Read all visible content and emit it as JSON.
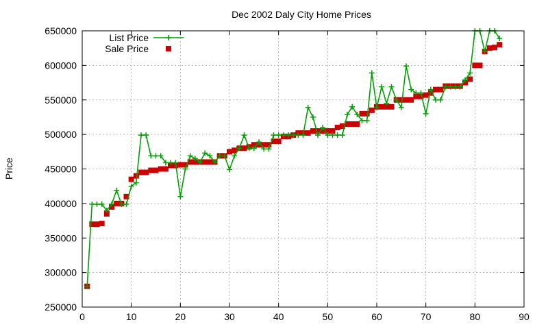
{
  "chart_data": {
    "type": "line",
    "title": "Dec 2002 Daly City Home Prices",
    "xlabel": "",
    "ylabel": "Price",
    "xlim": [
      0,
      90
    ],
    "ylim": [
      250000,
      650000
    ],
    "x_ticks": [
      0,
      10,
      20,
      30,
      40,
      50,
      60,
      70,
      80,
      90
    ],
    "y_ticks": [
      250000,
      300000,
      350000,
      400000,
      450000,
      500000,
      550000,
      600000,
      650000
    ],
    "grid": true,
    "legend_position": "top-left",
    "series": [
      {
        "name": "List Price",
        "style": "line-with-plus-markers",
        "color": "#00a000",
        "points": [
          [
            1,
            280000
          ],
          [
            2,
            399000
          ],
          [
            3,
            399000
          ],
          [
            4,
            399000
          ],
          [
            5,
            390000
          ],
          [
            6,
            399000
          ],
          [
            7,
            419000
          ],
          [
            8,
            399000
          ],
          [
            9,
            399000
          ],
          [
            10,
            425000
          ],
          [
            11,
            430000
          ],
          [
            12,
            499000
          ],
          [
            13,
            499000
          ],
          [
            14,
            469000
          ],
          [
            15,
            469000
          ],
          [
            16,
            469000
          ],
          [
            17,
            459000
          ],
          [
            18,
            459000
          ],
          [
            19,
            459000
          ],
          [
            20,
            410000
          ],
          [
            21,
            450000
          ],
          [
            22,
            469000
          ],
          [
            23,
            465000
          ],
          [
            24,
            460000
          ],
          [
            25,
            473000
          ],
          [
            26,
            469000
          ],
          [
            27,
            460000
          ],
          [
            28,
            469000
          ],
          [
            29,
            469000
          ],
          [
            30,
            449000
          ],
          [
            31,
            469000
          ],
          [
            32,
            480000
          ],
          [
            33,
            499000
          ],
          [
            34,
            480000
          ],
          [
            35,
            480000
          ],
          [
            36,
            489000
          ],
          [
            37,
            479000
          ],
          [
            38,
            479000
          ],
          [
            39,
            499000
          ],
          [
            40,
            499000
          ],
          [
            41,
            499000
          ],
          [
            42,
            499000
          ],
          [
            43,
            499000
          ],
          [
            44,
            499000
          ],
          [
            45,
            499000
          ],
          [
            46,
            539000
          ],
          [
            47,
            525000
          ],
          [
            48,
            499000
          ],
          [
            49,
            510000
          ],
          [
            50,
            499000
          ],
          [
            51,
            499000
          ],
          [
            52,
            499000
          ],
          [
            53,
            499000
          ],
          [
            54,
            529000
          ],
          [
            55,
            540000
          ],
          [
            56,
            529000
          ],
          [
            57,
            520000
          ],
          [
            58,
            520000
          ],
          [
            59,
            589000
          ],
          [
            60,
            539000
          ],
          [
            61,
            569000
          ],
          [
            62,
            545000
          ],
          [
            63,
            569000
          ],
          [
            64,
            550000
          ],
          [
            65,
            539000
          ],
          [
            66,
            599000
          ],
          [
            67,
            565000
          ],
          [
            68,
            560000
          ],
          [
            69,
            560000
          ],
          [
            70,
            530000
          ],
          [
            71,
            565000
          ],
          [
            72,
            550000
          ],
          [
            73,
            550000
          ],
          [
            74,
            569000
          ],
          [
            75,
            569000
          ],
          [
            76,
            569000
          ],
          [
            77,
            569000
          ],
          [
            78,
            579000
          ],
          [
            79,
            589000
          ],
          [
            80,
            650000
          ],
          [
            81,
            650000
          ],
          [
            82,
            620000
          ],
          [
            83,
            650000
          ],
          [
            84,
            650000
          ],
          [
            85,
            639000
          ]
        ]
      },
      {
        "name": "Sale Price",
        "style": "square-markers",
        "color": "#cc0000",
        "points": [
          [
            1,
            280000
          ],
          [
            2,
            370000
          ],
          [
            3,
            370000
          ],
          [
            4,
            371000
          ],
          [
            5,
            385000
          ],
          [
            6,
            395000
          ],
          [
            7,
            400000
          ],
          [
            8,
            400000
          ],
          [
            9,
            410000
          ],
          [
            10,
            435000
          ],
          [
            11,
            440000
          ],
          [
            12,
            445000
          ],
          [
            13,
            445000
          ],
          [
            14,
            448000
          ],
          [
            15,
            448000
          ],
          [
            16,
            450000
          ],
          [
            17,
            450000
          ],
          [
            18,
            455000
          ],
          [
            19,
            455000
          ],
          [
            20,
            456000
          ],
          [
            21,
            456000
          ],
          [
            22,
            460000
          ],
          [
            23,
            460000
          ],
          [
            24,
            460000
          ],
          [
            25,
            460000
          ],
          [
            26,
            460000
          ],
          [
            27,
            460000
          ],
          [
            28,
            469000
          ],
          [
            29,
            469000
          ],
          [
            30,
            475000
          ],
          [
            31,
            477000
          ],
          [
            32,
            480000
          ],
          [
            33,
            480000
          ],
          [
            34,
            482000
          ],
          [
            35,
            485000
          ],
          [
            36,
            485000
          ],
          [
            37,
            485000
          ],
          [
            38,
            485000
          ],
          [
            39,
            490000
          ],
          [
            40,
            490000
          ],
          [
            41,
            497000
          ],
          [
            42,
            497000
          ],
          [
            43,
            499000
          ],
          [
            44,
            502000
          ],
          [
            45,
            502000
          ],
          [
            46,
            502000
          ],
          [
            47,
            505000
          ],
          [
            48,
            505000
          ],
          [
            49,
            505000
          ],
          [
            50,
            505000
          ],
          [
            51,
            505000
          ],
          [
            52,
            510000
          ],
          [
            53,
            512000
          ],
          [
            54,
            515000
          ],
          [
            55,
            515000
          ],
          [
            56,
            515000
          ],
          [
            57,
            530000
          ],
          [
            58,
            530000
          ],
          [
            59,
            535000
          ],
          [
            60,
            540000
          ],
          [
            61,
            540000
          ],
          [
            62,
            540000
          ],
          [
            63,
            540000
          ],
          [
            64,
            550000
          ],
          [
            65,
            550000
          ],
          [
            66,
            550000
          ],
          [
            67,
            550000
          ],
          [
            68,
            555000
          ],
          [
            69,
            555000
          ],
          [
            70,
            557000
          ],
          [
            71,
            560000
          ],
          [
            72,
            565000
          ],
          [
            73,
            565000
          ],
          [
            74,
            570000
          ],
          [
            75,
            570000
          ],
          [
            76,
            570000
          ],
          [
            77,
            570000
          ],
          [
            78,
            575000
          ],
          [
            79,
            580000
          ],
          [
            80,
            600000
          ],
          [
            81,
            600000
          ],
          [
            82,
            620000
          ],
          [
            83,
            625000
          ],
          [
            84,
            626000
          ],
          [
            85,
            630000
          ]
        ]
      }
    ]
  }
}
